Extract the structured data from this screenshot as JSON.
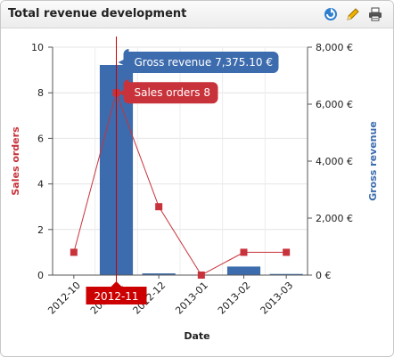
{
  "widget": {
    "title": "Total revenue development",
    "icons": [
      "refresh-icon",
      "pencil-icon",
      "printer-icon"
    ]
  },
  "colors": {
    "orders": "#c8323a",
    "revenue": "#3d6cae",
    "tooltip_revenue_bg": "#3d6cae",
    "tooltip_orders_bg": "#c8323a",
    "crosshair": "#c80000"
  },
  "chart_data": {
    "type": "bar",
    "categories": [
      "2012-10",
      "2012-11",
      "2012-12",
      "2013-01",
      "2013-02",
      "2013-03"
    ],
    "series": [
      {
        "name": "Gross revenue",
        "type": "bar",
        "axis": "right",
        "values": [
          0,
          7375.1,
          60,
          0,
          300,
          40
        ]
      },
      {
        "name": "Sales orders",
        "type": "line",
        "axis": "left",
        "values": [
          1,
          8,
          3,
          0,
          1,
          1
        ]
      }
    ],
    "xlabel": "Date",
    "ylabel_left": "Sales orders",
    "ylabel_right": "Gross revenue",
    "ylim_left": [
      0,
      10
    ],
    "ylim_right": [
      0,
      8000
    ],
    "yticks_left": [
      "0",
      "2",
      "4",
      "6",
      "8",
      "10"
    ],
    "yticks_right": [
      "0 €",
      "2,000 €",
      "4,000 €",
      "6,000 €",
      "8,000 €"
    ],
    "grid": true,
    "hover": {
      "category": "2012-11",
      "revenue_text": "Gross revenue 7,375.10 €",
      "orders_text": "Sales orders 8"
    }
  }
}
